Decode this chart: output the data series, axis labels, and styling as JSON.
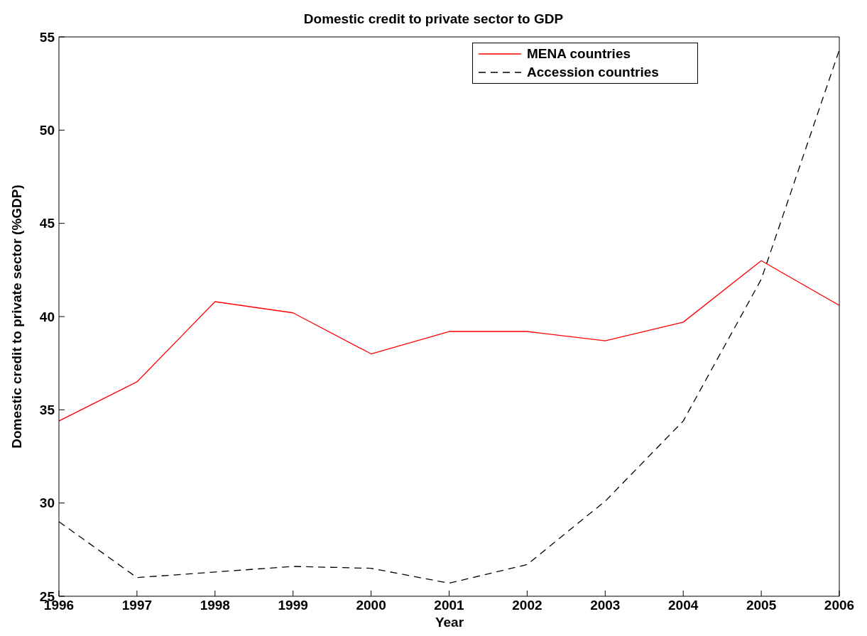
{
  "chart_data": {
    "type": "line",
    "title": "Domestic credit to private sector to GDP",
    "xlabel": "Year",
    "ylabel": "Domestic credit to private sector (%GDP)",
    "x": [
      1996,
      1997,
      1998,
      1999,
      2000,
      2001,
      2002,
      2003,
      2004,
      2005,
      2006
    ],
    "xlim": [
      1996,
      2006
    ],
    "xticks": [
      1996,
      1997,
      1998,
      1999,
      2000,
      2001,
      2002,
      2003,
      2004,
      2005,
      2006
    ],
    "ylim": [
      25,
      55
    ],
    "yticks": [
      25,
      30,
      35,
      40,
      45,
      50,
      55
    ],
    "series": [
      {
        "name": "MENA countries",
        "color": "#ff0000",
        "line_style": "solid",
        "values": [
          34.4,
          36.5,
          40.8,
          40.2,
          38.0,
          39.2,
          39.2,
          38.7,
          39.7,
          43.0,
          40.6
        ]
      },
      {
        "name": "Accession countries",
        "color": "#000000",
        "line_style": "dashed",
        "values": [
          29.0,
          26.0,
          26.3,
          26.6,
          26.5,
          25.7,
          26.7,
          30.1,
          34.4,
          42.0,
          54.3
        ]
      }
    ],
    "legend": "top right",
    "grid": false,
    "marker": "none"
  }
}
